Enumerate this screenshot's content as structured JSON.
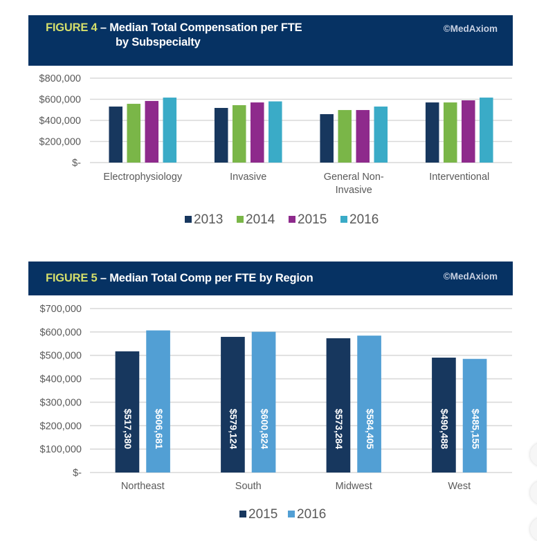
{
  "figure4": {
    "number_label": "FIGURE 4",
    "title_dash": " – ",
    "title_line1": "Median Total Compensation per FTE",
    "title_line2": "by Subspecialty",
    "brand": "©MedAxiom"
  },
  "figure5": {
    "number_label": "FIGURE 5",
    "title_dash": " – ",
    "title_line1": "Median Total Comp per FTE by Region",
    "brand": "©MedAxiom"
  },
  "chart_data": [
    {
      "type": "bar",
      "title": "FIGURE 4 – Median Total Compensation per FTE by Subspecialty",
      "categories": [
        "Electrophysiology",
        "Invasive",
        "General Non-Invasive",
        "Interventional"
      ],
      "category_label_lines": [
        [
          "Electrophysiology"
        ],
        [
          "Invasive"
        ],
        [
          "General Non-",
          "Invasive"
        ],
        [
          "Interventional"
        ]
      ],
      "series": [
        {
          "name": "2013",
          "color": "#17375e",
          "values": [
            531000,
            518000,
            459000,
            570000
          ]
        },
        {
          "name": "2014",
          "color": "#7ab648",
          "values": [
            557000,
            544000,
            498000,
            570000
          ]
        },
        {
          "name": "2015",
          "color": "#8e2a8c",
          "values": [
            584000,
            570000,
            498000,
            590000
          ]
        },
        {
          "name": "2016",
          "color": "#3aabc7",
          "values": [
            616000,
            580000,
            531000,
            616000
          ]
        }
      ],
      "xlabel": "",
      "ylabel": "",
      "ylim": [
        0,
        800000
      ],
      "yticks": [
        0,
        200000,
        400000,
        600000,
        800000
      ],
      "ytick_labels": [
        "$-",
        "$200,000",
        "$400,000",
        "$600,000",
        "$800,000"
      ],
      "grid": true,
      "legend": "bottom",
      "data_labels": false
    },
    {
      "type": "bar",
      "title": "FIGURE 5 – Median Total Comp per FTE by Region",
      "categories": [
        "Northeast",
        "South",
        "Midwest",
        "West"
      ],
      "category_label_lines": [
        [
          "Northeast"
        ],
        [
          "South"
        ],
        [
          "Midwest"
        ],
        [
          "West"
        ]
      ],
      "series": [
        {
          "name": "2015",
          "color": "#17375e",
          "values": [
            517380,
            579124,
            573284,
            490488
          ],
          "labels": [
            "$517,380",
            "$579,124",
            "$573,284",
            "$490,488"
          ]
        },
        {
          "name": "2016",
          "color": "#529fd4",
          "values": [
            606681,
            600824,
            584405,
            485155
          ],
          "labels": [
            "$606,681",
            "$600,824",
            "$584,405",
            "$485,155"
          ]
        }
      ],
      "xlabel": "",
      "ylabel": "",
      "ylim": [
        0,
        700000
      ],
      "yticks": [
        0,
        100000,
        200000,
        300000,
        400000,
        500000,
        600000,
        700000
      ],
      "ytick_labels": [
        "$-",
        "$100,000",
        "$200,000",
        "$300,000",
        "$400,000",
        "$500,000",
        "$600,000",
        "$700,000"
      ],
      "grid": true,
      "legend": "bottom",
      "data_labels": true
    }
  ]
}
